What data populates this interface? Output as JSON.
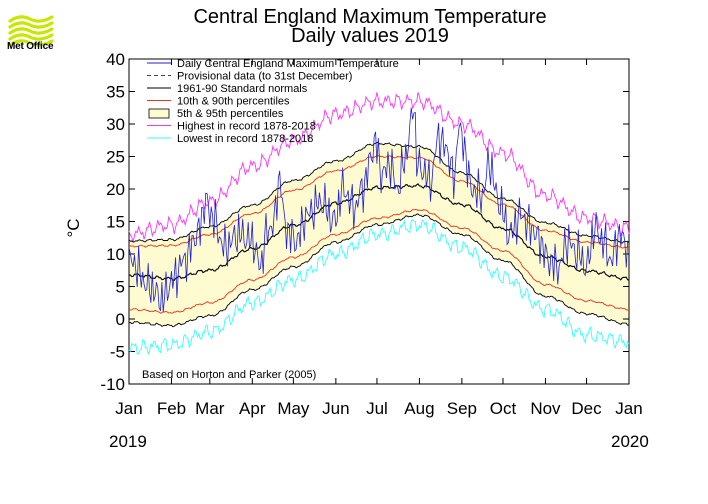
{
  "branding": {
    "logo_text": "Met Office",
    "logo_color": "#c8e600"
  },
  "chart_data": {
    "type": "line",
    "title": "Central England Maximum Temperature",
    "subtitle": "Daily values 2019",
    "xlabel": "",
    "ylabel": "°C",
    "ylim": [
      -10,
      40
    ],
    "yticks": [
      -10,
      -5,
      0,
      5,
      10,
      15,
      20,
      25,
      30,
      35,
      40
    ],
    "months": [
      "Jan",
      "Feb",
      "Mar",
      "Apr",
      "May",
      "Jun",
      "Jul",
      "Aug",
      "Sep",
      "Oct",
      "Nov",
      "Dec",
      "Jan"
    ],
    "year_labels": [
      "2019",
      "2020"
    ],
    "annotation": "Based on Horton and Parker (2005)",
    "legend": {
      "placement": "top-left",
      "entries": [
        {
          "label": "Daily Central England Maximum Temperature",
          "color": "#1f1fd8",
          "style": "solid"
        },
        {
          "label": "Provisional data (to 31st December)",
          "color": "#444444",
          "style": "dashed"
        },
        {
          "label": "1961-90 Standard normals",
          "color": "#000000",
          "style": "solid"
        },
        {
          "label": "10th & 90th percentiles",
          "color": "#e8341c",
          "style": "solid"
        },
        {
          "label": "5th & 95th percentiles",
          "color": "#000000",
          "style": "box",
          "fill": "#fdfbcf"
        },
        {
          "label": "Highest in record 1878-2018",
          "color": "#ff33ff",
          "style": "solid"
        },
        {
          "label": "Lowest in record 1878-2018",
          "color": "#33ffff",
          "style": "solid"
        }
      ]
    },
    "series": [
      {
        "name": "1961-90 Standard normals",
        "color": "#000000",
        "x": [
          0,
          31,
          59,
          90,
          120,
          151,
          181,
          212,
          243,
          273,
          304,
          334,
          365
        ],
        "values": [
          6.8,
          6.2,
          7.5,
          10.8,
          14.4,
          17.8,
          20.2,
          20.5,
          17.6,
          13.9,
          9.6,
          7.4,
          6.2
        ]
      },
      {
        "name": "10th percentile",
        "color": "#e8341c",
        "x": [
          0,
          31,
          59,
          90,
          120,
          151,
          181,
          212,
          243,
          273,
          304,
          334,
          365
        ],
        "values": [
          1.5,
          1.0,
          2.5,
          6.0,
          9.5,
          13.0,
          15.5,
          16.8,
          14.0,
          10.5,
          5.3,
          2.8,
          1.5
        ]
      },
      {
        "name": "90th percentile",
        "color": "#e8341c",
        "x": [
          0,
          31,
          59,
          90,
          120,
          151,
          181,
          212,
          243,
          273,
          304,
          334,
          365
        ],
        "values": [
          11.2,
          11.3,
          13.0,
          16.2,
          19.8,
          22.8,
          25.0,
          24.8,
          21.2,
          17.6,
          13.6,
          11.8,
          11.0
        ]
      },
      {
        "name": "5th percentile",
        "color": "#000000",
        "x": [
          0,
          31,
          59,
          90,
          120,
          151,
          181,
          212,
          243,
          273,
          304,
          334,
          365
        ],
        "values": [
          -0.5,
          -1.0,
          0.5,
          4.5,
          8.0,
          11.8,
          14.5,
          16.0,
          13.0,
          9.0,
          3.5,
          0.8,
          -0.8
        ]
      },
      {
        "name": "95th percentile",
        "color": "#000000",
        "x": [
          0,
          31,
          59,
          90,
          120,
          151,
          181,
          212,
          243,
          273,
          304,
          334,
          365
        ],
        "values": [
          12.0,
          12.2,
          14.2,
          17.5,
          21.3,
          24.3,
          27.0,
          26.5,
          22.5,
          18.5,
          14.8,
          12.8,
          11.8
        ]
      },
      {
        "name": "Highest in record 1878-2018",
        "color": "#ff33ff",
        "x": [
          0,
          31,
          59,
          90,
          120,
          151,
          181,
          212,
          243,
          273,
          304,
          334,
          365
        ],
        "values": [
          13.0,
          14.5,
          18.0,
          23.5,
          27.5,
          31.5,
          33.5,
          33.5,
          30.0,
          25.5,
          19.0,
          15.5,
          14.0
        ]
      },
      {
        "name": "Lowest in record 1878-2018",
        "color": "#33ffff",
        "x": [
          0,
          31,
          59,
          90,
          120,
          151,
          181,
          212,
          243,
          273,
          304,
          334,
          365
        ],
        "values": [
          -4.5,
          -4.0,
          -2.0,
          2.5,
          6.0,
          10.0,
          13.0,
          14.5,
          11.0,
          6.5,
          1.5,
          -2.5,
          -3.5
        ]
      },
      {
        "name": "Daily Central England Maximum Temperature",
        "color": "#1f1fd8",
        "x": [
          1,
          15,
          24,
          32,
          40,
          50,
          56,
          60,
          70,
          80,
          90,
          96,
          100,
          106,
          110,
          114,
          122,
          130,
          140,
          150,
          156,
          165,
          170,
          180,
          185,
          190,
          196,
          202,
          206,
          208,
          210,
          214,
          220,
          226,
          232,
          238,
          240,
          244,
          250,
          258,
          263,
          270,
          278,
          286,
          294,
          300,
          306,
          314,
          320,
          328,
          334,
          340,
          346,
          352,
          358,
          364
        ],
        "values": [
          9,
          5,
          3,
          6,
          9,
          13,
          18,
          16,
          11,
          13,
          12,
          8,
          13,
          15,
          22,
          14,
          12,
          16,
          18,
          15,
          20,
          17,
          20,
          27,
          22,
          24,
          20,
          25,
          30,
          34,
          24,
          23,
          21,
          28,
          26,
          21,
          30,
          27,
          20,
          19,
          24,
          18,
          13,
          16,
          14,
          12,
          9,
          8,
          12,
          10,
          8,
          14,
          12,
          9,
          13,
          11
        ]
      }
    ]
  }
}
